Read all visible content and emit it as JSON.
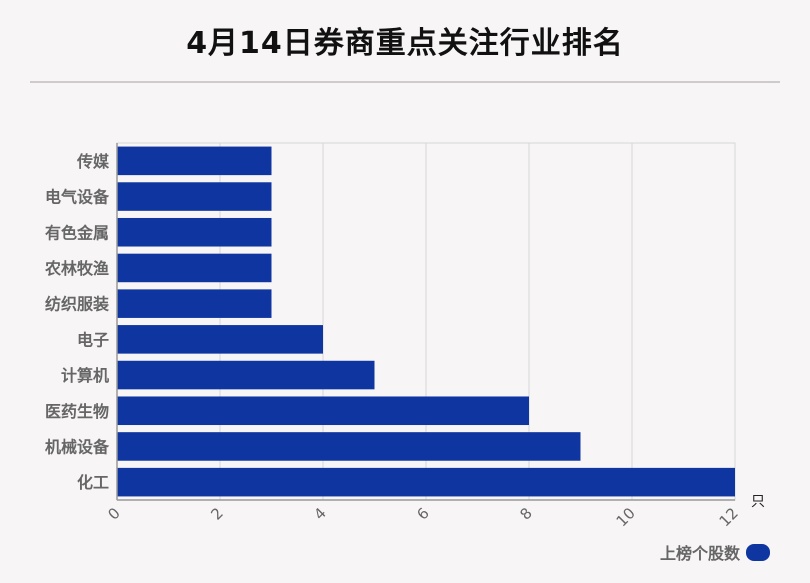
{
  "title": "4月14日券商重点关注行业排名",
  "chart_data": {
    "type": "bar",
    "orientation": "horizontal",
    "title": "4月14日券商重点关注行业排名",
    "categories": [
      "传媒",
      "电气设备",
      "有色金属",
      "农林牧渔",
      "纺织服装",
      "电子",
      "计算机",
      "医药生物",
      "机械设备",
      "化工"
    ],
    "series": [
      {
        "name": "上榜个股数",
        "values": [
          3,
          3,
          3,
          3,
          3,
          4,
          5,
          8,
          9,
          12
        ],
        "color": "#0f36a0"
      }
    ],
    "xlim": [
      0,
      12
    ],
    "xticks": [
      0,
      2,
      4,
      6,
      8,
      10,
      12
    ],
    "unit": "只",
    "grid": true,
    "legend_position": "bottom-right"
  },
  "legend": {
    "label": "上榜个股数",
    "color": "#0f36a0"
  }
}
